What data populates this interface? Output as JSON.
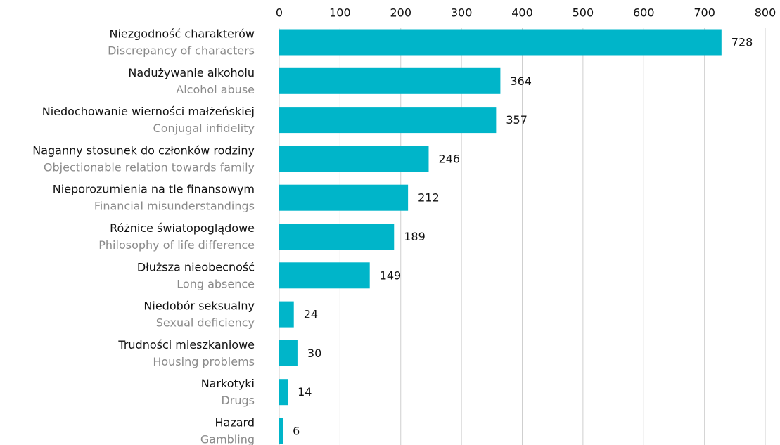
{
  "chart_data": {
    "type": "barh",
    "categories": [
      "Niezgodność charakterów",
      "Nadużywanie alkoholu",
      "Niedochowanie wierności małżeńskiej",
      "Naganny stosunek do członków rodziny",
      "Nieporozumienia na tle finansowym",
      "Różnice światopoglądowe",
      "Dłuższa nieobecność",
      "Niedobór seksualny",
      "Trudności mieszkaniowe",
      "Narkotyki",
      "Hazard"
    ],
    "categories_en": [
      "Discrepancy of characters",
      "Alcohol abuse",
      "Conjugal infidelity",
      "Objectionable relation towards family",
      "Financial misunderstandings",
      "Philosophy of life difference",
      "Long absence",
      "Sexual deficiency",
      "Housing problems",
      "Drugs",
      "Gambling"
    ],
    "values": [
      728,
      364,
      357,
      246,
      212,
      189,
      149,
      24,
      30,
      14,
      6
    ],
    "color": "#00b5c9",
    "xlim": [
      0,
      800
    ],
    "xticks": [
      0,
      100,
      200,
      300,
      400,
      500,
      600,
      700,
      800
    ],
    "grid": true
  }
}
